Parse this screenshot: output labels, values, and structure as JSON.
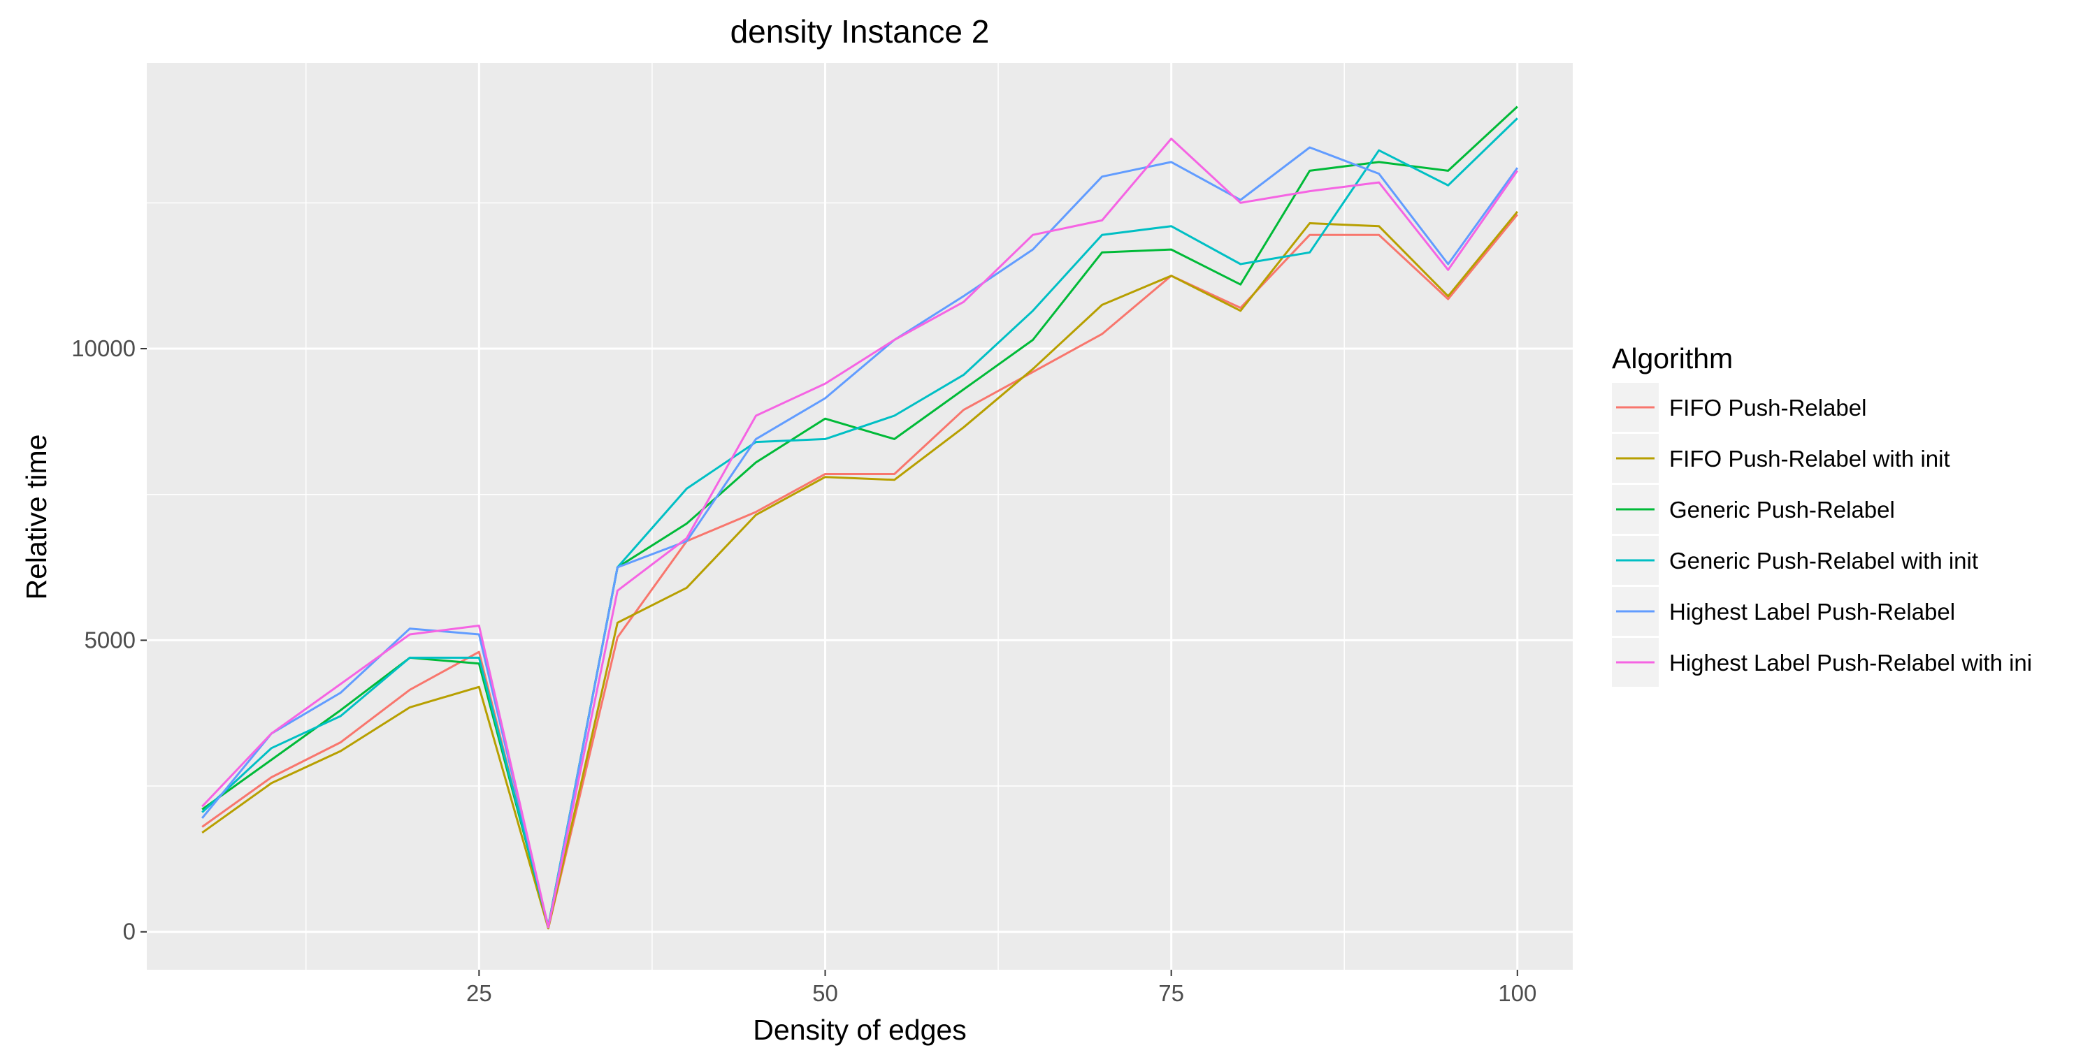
{
  "chart_data": {
    "type": "line",
    "title": "density Instance 2",
    "xlabel": "Density of edges",
    "ylabel": "Relative time",
    "xlim": [
      1,
      104
    ],
    "ylim": [
      -650,
      14900
    ],
    "x_ticks": [
      25,
      50,
      75,
      100
    ],
    "x_tick_labels": [
      "25",
      "50",
      "75",
      "100"
    ],
    "y_ticks": [
      0,
      5000,
      10000
    ],
    "y_tick_labels": [
      "0",
      "5000",
      "10000"
    ],
    "grid": true,
    "background": "#ebebeb",
    "legend": {
      "title": "Algorithm",
      "placement": "right"
    },
    "x": [
      5,
      10,
      15,
      20,
      25,
      30,
      35,
      40,
      45,
      50,
      55,
      60,
      65,
      70,
      75,
      80,
      85,
      90,
      95,
      100
    ],
    "series": [
      {
        "name": "FIFO Push-Relabel",
        "color": "#f8766d",
        "values": [
          1800,
          2650,
          3250,
          4150,
          4800,
          60,
          5050,
          6700,
          7200,
          7850,
          7850,
          8950,
          9600,
          10250,
          11250,
          10700,
          11950,
          11950,
          10850,
          12300
        ]
      },
      {
        "name": "FIFO Push-Relabel with init",
        "color": "#b79f00",
        "values": [
          1700,
          2550,
          3100,
          3850,
          4200,
          60,
          5300,
          5900,
          7150,
          7800,
          7750,
          8650,
          9650,
          10750,
          11250,
          10650,
          12150,
          12100,
          10900,
          12350
        ]
      },
      {
        "name": "Generic Push-Relabel",
        "color": "#00ba38",
        "values": [
          2100,
          2950,
          3800,
          4700,
          4600,
          100,
          6250,
          7000,
          8050,
          8800,
          8450,
          9300,
          10150,
          11650,
          11700,
          11100,
          13050,
          13200,
          13050,
          14150
        ]
      },
      {
        "name": "Generic Push-Relabel with init",
        "color": "#00bfc4",
        "values": [
          2050,
          3150,
          3700,
          4700,
          4700,
          100,
          6250,
          7600,
          8400,
          8450,
          8850,
          9550,
          10650,
          11950,
          12100,
          11450,
          11650,
          13400,
          12800,
          13950
        ]
      },
      {
        "name": "Highest Label Push-Relabel",
        "color": "#619cff",
        "values": [
          1950,
          3400,
          4100,
          5200,
          5100,
          80,
          6250,
          6700,
          8450,
          9150,
          10150,
          10900,
          11700,
          12950,
          13200,
          12550,
          13450,
          13000,
          11450,
          13100
        ]
      },
      {
        "name": "Highest Label Push-Relabel with ini",
        "color": "#f564e3",
        "values": [
          2150,
          3400,
          4250,
          5100,
          5250,
          80,
          5850,
          6750,
          8850,
          9400,
          10150,
          10800,
          11950,
          12200,
          13600,
          12500,
          12700,
          12850,
          11350,
          13050
        ]
      }
    ]
  }
}
